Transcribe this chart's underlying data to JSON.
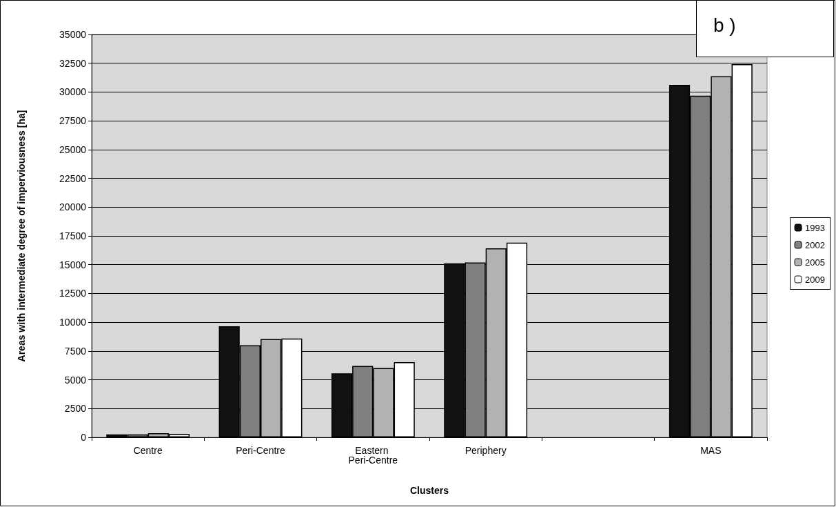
{
  "chart_data": {
    "type": "bar",
    "xlabel": "Clusters",
    "ylabel": "Areas with intermediate degree of imperviousness [ha]",
    "annotations": [
      "b )"
    ],
    "categories": [
      "Centre",
      "Peri-Centre",
      "Eastern Peri-Centre",
      "Periphery",
      null,
      "MAS"
    ],
    "series": [
      {
        "name": "1993",
        "color": "#111111",
        "values": [
          250,
          9650,
          5560,
          15120,
          null,
          30620
        ]
      },
      {
        "name": "2002",
        "color": "#808080",
        "values": [
          250,
          8000,
          6200,
          15200,
          null,
          29680
        ]
      },
      {
        "name": "2005",
        "color": "#b2b2b2",
        "values": [
          360,
          8540,
          6020,
          16420,
          null,
          31380
        ]
      },
      {
        "name": "2009",
        "color": "#ffffff",
        "values": [
          300,
          8580,
          6540,
          16920,
          null,
          32420
        ]
      }
    ],
    "ylim": [
      0,
      35000
    ],
    "yticks": [
      0,
      2500,
      5000,
      7500,
      10000,
      12500,
      15000,
      17500,
      20000,
      22500,
      25000,
      27500,
      30000,
      32500,
      35000
    ],
    "grid": "y",
    "legend": "right"
  }
}
